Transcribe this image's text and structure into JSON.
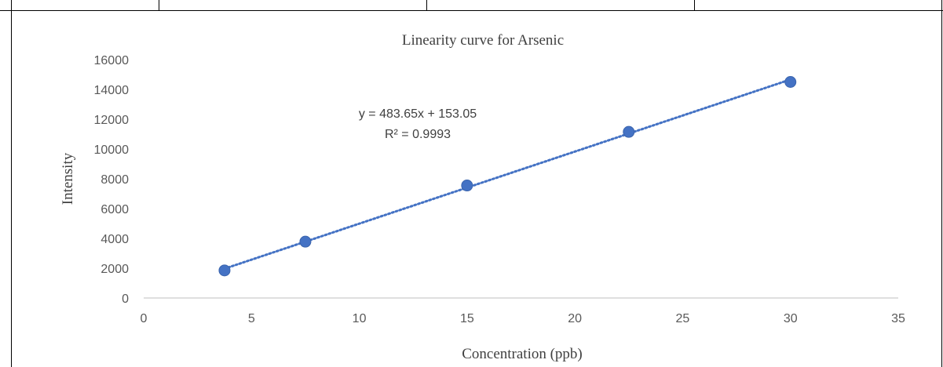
{
  "chart_data": {
    "type": "scatter",
    "title": "Linearity curve for Arsenic",
    "xlabel": "Concentration (ppb)",
    "ylabel": "Intensity",
    "xlim": [
      0,
      35
    ],
    "ylim": [
      0,
      16000
    ],
    "x_ticks": [
      0,
      5,
      10,
      15,
      20,
      25,
      30,
      35
    ],
    "y_ticks": [
      0,
      2000,
      4000,
      6000,
      8000,
      10000,
      12000,
      14000,
      16000
    ],
    "series": [
      {
        "x": [
          3.75,
          7.5,
          15,
          22.5,
          30
        ],
        "y": [
          1850,
          3780,
          7550,
          11150,
          14500
        ],
        "color": "#4472C4"
      }
    ],
    "trendline": {
      "type": "linear",
      "slope": 483.65,
      "intercept": 153.05,
      "style": "dotted",
      "color": "#4472C4"
    },
    "annotations": {
      "equation": "y = 483.65x + 153.05",
      "r_squared": "R² = 0.9993"
    },
    "grid": false,
    "legend": "none"
  }
}
